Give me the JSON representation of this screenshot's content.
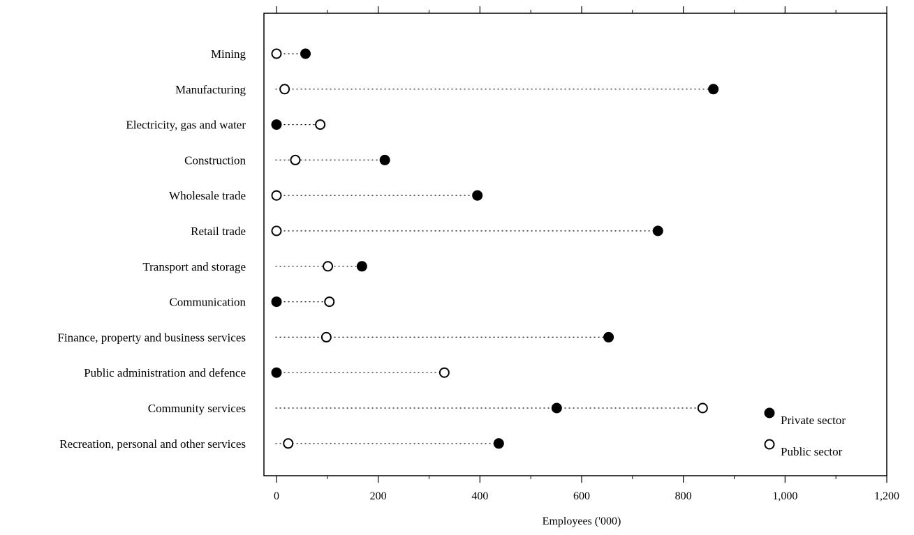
{
  "chart_data": {
    "type": "dot-plot",
    "xlabel": "Employees ('000)",
    "xlim": [
      -20,
      1200
    ],
    "xticks": [
      0,
      200,
      400,
      600,
      800,
      1000,
      1200
    ],
    "xtick_labels": [
      "0",
      "200",
      "400",
      "600",
      "800",
      "1,000",
      "1,200"
    ],
    "legend_position": "bottom-right",
    "categories": [
      "Mining",
      "Manufacturing",
      "Electricity, gas and water",
      "Construction",
      "Wholesale trade",
      "Retail trade",
      "Transport and storage",
      "Communication",
      "Finance, property and business services",
      "Public administration and defence",
      "Community services",
      "Recreation, personal and other services"
    ],
    "series": [
      {
        "name": "Private sector",
        "marker": "filled",
        "values": [
          57,
          859,
          0,
          213,
          395,
          750,
          168,
          0,
          653,
          0,
          551,
          437
        ]
      },
      {
        "name": "Public sector",
        "marker": "hollow",
        "values": [
          0,
          16,
          86,
          37,
          0,
          0,
          101,
          104,
          98,
          330,
          838,
          23
        ]
      }
    ]
  }
}
